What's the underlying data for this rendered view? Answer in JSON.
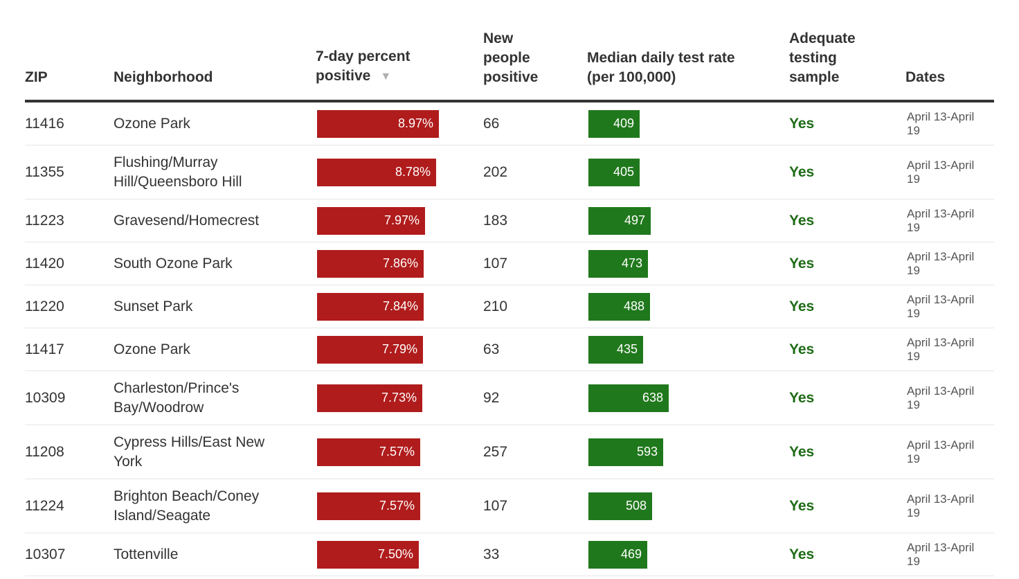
{
  "headers": {
    "zip": "ZIP",
    "neighborhood": "Neighborhood",
    "positive_line1": "7-day percent",
    "positive_line2": "positive",
    "sort_icon": "sort-descending-icon",
    "new_line1": "New",
    "new_line2": "people",
    "new_line3": "positive",
    "rate_line1": "Median daily test rate",
    "rate_line2": "(per 100,000)",
    "adequate_line1": "Adequate",
    "adequate_line2": "testing",
    "adequate_line3": "sample",
    "dates": "Dates"
  },
  "colors": {
    "positive_bar": "#b01c1c",
    "rate_bar": "#20781c",
    "adequate_bg": "#e4f4e0",
    "yes_text": "#1e6b16"
  },
  "rows": [
    {
      "zip": "11416",
      "neighborhood": "Ozone Park",
      "pct": 8.97,
      "pct_label": "8.97%",
      "new": "66",
      "rate": 409,
      "rate_label": "409",
      "adequate": "Yes",
      "dates": "April 13-April 19"
    },
    {
      "zip": "11355",
      "neighborhood": "Flushing/Murray Hill/Queensboro Hill",
      "pct": 8.78,
      "pct_label": "8.78%",
      "new": "202",
      "rate": 405,
      "rate_label": "405",
      "adequate": "Yes",
      "dates": "April 13-April 19"
    },
    {
      "zip": "11223",
      "neighborhood": "Gravesend/Homecrest",
      "pct": 7.97,
      "pct_label": "7.97%",
      "new": "183",
      "rate": 497,
      "rate_label": "497",
      "adequate": "Yes",
      "dates": "April 13-April 19"
    },
    {
      "zip": "11420",
      "neighborhood": "South Ozone Park",
      "pct": 7.86,
      "pct_label": "7.86%",
      "new": "107",
      "rate": 473,
      "rate_label": "473",
      "adequate": "Yes",
      "dates": "April 13-April 19"
    },
    {
      "zip": "11220",
      "neighborhood": "Sunset Park",
      "pct": 7.84,
      "pct_label": "7.84%",
      "new": "210",
      "rate": 488,
      "rate_label": "488",
      "adequate": "Yes",
      "dates": "April 13-April 19"
    },
    {
      "zip": "11417",
      "neighborhood": "Ozone Park",
      "pct": 7.79,
      "pct_label": "7.79%",
      "new": "63",
      "rate": 435,
      "rate_label": "435",
      "adequate": "Yes",
      "dates": "April 13-April 19"
    },
    {
      "zip": "10309",
      "neighborhood": "Charleston/Prince's Bay/Woodrow",
      "pct": 7.73,
      "pct_label": "7.73%",
      "new": "92",
      "rate": 638,
      "rate_label": "638",
      "adequate": "Yes",
      "dates": "April 13-April 19"
    },
    {
      "zip": "11208",
      "neighborhood": "Cypress Hills/East New York",
      "pct": 7.57,
      "pct_label": "7.57%",
      "new": "257",
      "rate": 593,
      "rate_label": "593",
      "adequate": "Yes",
      "dates": "April 13-April 19"
    },
    {
      "zip": "11224",
      "neighborhood": "Brighton Beach/Coney Island/Seagate",
      "pct": 7.57,
      "pct_label": "7.57%",
      "new": "107",
      "rate": 508,
      "rate_label": "508",
      "adequate": "Yes",
      "dates": "April 13-April 19"
    },
    {
      "zip": "10307",
      "neighborhood": "Tottenville",
      "pct": 7.5,
      "pct_label": "7.50%",
      "new": "33",
      "rate": 469,
      "rate_label": "469",
      "adequate": "Yes",
      "dates": "April 13-April 19"
    }
  ]
}
